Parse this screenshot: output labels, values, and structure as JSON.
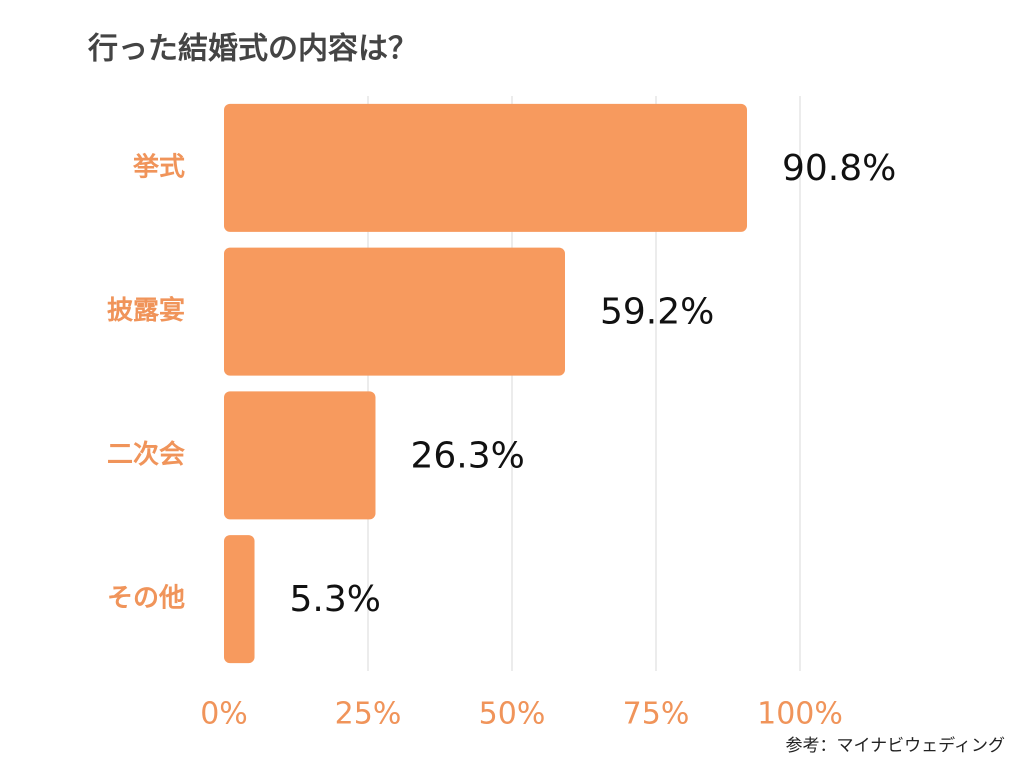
{
  "chart_data": {
    "type": "hbar",
    "title": "行った結婚式の内容は？",
    "categories": [
      "挙式",
      "披露宴",
      "二次会",
      "その他"
    ],
    "values": [
      90.8,
      59.2,
      26.3,
      5.3
    ],
    "value_labels": [
      "90.8%",
      "59.2%",
      "26.3%",
      "5.3%"
    ],
    "color": "#f79a5e",
    "xlim": [
      0,
      100
    ],
    "xticks": [
      {
        "value": 0,
        "label": "0%"
      },
      {
        "value": 25,
        "label": "25%"
      },
      {
        "value": 50,
        "label": "50%"
      },
      {
        "value": 75,
        "label": "75%"
      },
      {
        "value": 100,
        "label": "100%"
      }
    ],
    "grid": true,
    "source": "参考：マイナビウェディング"
  }
}
